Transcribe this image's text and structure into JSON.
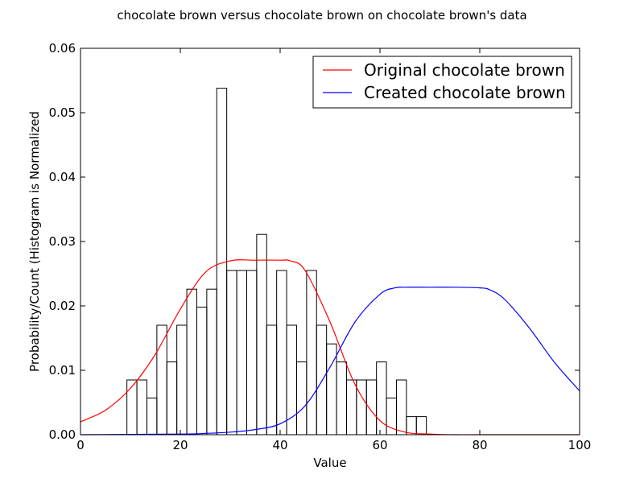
{
  "chart_data": {
    "type": "bar",
    "title": "chocolate brown versus chocolate brown on chocolate brown's data",
    "xlabel": "Value",
    "ylabel": "Probability/Count (Histogram is Normalized",
    "xlim": [
      0,
      100
    ],
    "ylim": [
      0,
      0.06
    ],
    "xticks": [
      0,
      20,
      40,
      60,
      80,
      100
    ],
    "xtick_labels": [
      "0",
      "20",
      "40",
      "60",
      "80",
      "100"
    ],
    "yticks": [
      0,
      0.01,
      0.02,
      0.03,
      0.04,
      0.05,
      0.06
    ],
    "ytick_labels": [
      "0.00",
      "0.01",
      "0.02",
      "0.03",
      "0.04",
      "0.05",
      "0.06"
    ],
    "grid": false,
    "legend_position": "top-right",
    "histogram": {
      "color": "#000000",
      "bins": [
        {
          "x0": 9.3,
          "x1": 11.3,
          "value": 0.0085
        },
        {
          "x0": 11.3,
          "x1": 13.3,
          "value": 0.0085
        },
        {
          "x0": 13.3,
          "x1": 15.3,
          "value": 0.0057
        },
        {
          "x0": 15.3,
          "x1": 17.3,
          "value": 0.017
        },
        {
          "x0": 17.3,
          "x1": 19.3,
          "value": 0.0113
        },
        {
          "x0": 19.3,
          "x1": 21.3,
          "value": 0.017
        },
        {
          "x0": 21.3,
          "x1": 23.3,
          "value": 0.0226
        },
        {
          "x0": 23.3,
          "x1": 25.3,
          "value": 0.0198
        },
        {
          "x0": 25.3,
          "x1": 27.3,
          "value": 0.0226
        },
        {
          "x0": 27.3,
          "x1": 29.3,
          "value": 0.0538
        },
        {
          "x0": 29.3,
          "x1": 31.3,
          "value": 0.0255
        },
        {
          "x0": 31.3,
          "x1": 33.3,
          "value": 0.0255
        },
        {
          "x0": 33.3,
          "x1": 35.3,
          "value": 0.0255
        },
        {
          "x0": 35.3,
          "x1": 37.3,
          "value": 0.0311
        },
        {
          "x0": 37.3,
          "x1": 39.3,
          "value": 0.017
        },
        {
          "x0": 39.3,
          "x1": 41.3,
          "value": 0.0255
        },
        {
          "x0": 41.3,
          "x1": 43.3,
          "value": 0.017
        },
        {
          "x0": 43.3,
          "x1": 45.3,
          "value": 0.0113
        },
        {
          "x0": 45.3,
          "x1": 47.3,
          "value": 0.0255
        },
        {
          "x0": 47.3,
          "x1": 49.3,
          "value": 0.017
        },
        {
          "x0": 49.3,
          "x1": 51.3,
          "value": 0.0141
        },
        {
          "x0": 51.3,
          "x1": 53.3,
          "value": 0.0113
        },
        {
          "x0": 53.3,
          "x1": 55.3,
          "value": 0.0085
        },
        {
          "x0": 55.3,
          "x1": 57.3,
          "value": 0.0085
        },
        {
          "x0": 57.3,
          "x1": 59.3,
          "value": 0.0085
        },
        {
          "x0": 59.3,
          "x1": 61.3,
          "value": 0.0113
        },
        {
          "x0": 61.3,
          "x1": 63.3,
          "value": 0.0057
        },
        {
          "x0": 63.3,
          "x1": 65.3,
          "value": 0.0085
        },
        {
          "x0": 65.3,
          "x1": 67.3,
          "value": 0.0028
        },
        {
          "x0": 67.3,
          "x1": 69.3,
          "value": 0.0028
        }
      ]
    },
    "series": [
      {
        "name": "Original chocolate brown",
        "color": "#ff0000",
        "x": [
          0,
          5,
          10,
          15,
          20,
          25,
          30,
          35,
          40,
          42,
          45,
          50,
          55,
          60,
          65,
          70,
          75,
          80,
          100
        ],
        "y": [
          0.002,
          0.0038,
          0.0072,
          0.0125,
          0.0195,
          0.0252,
          0.027,
          0.0271,
          0.0271,
          0.027,
          0.0255,
          0.0175,
          0.0078,
          0.0022,
          0.0004,
          0.0001,
          0.0,
          0.0,
          0.0
        ]
      },
      {
        "name": "Created chocolate brown",
        "color": "#0000ff",
        "x": [
          0,
          20,
          25,
          30,
          35,
          40,
          45,
          50,
          55,
          60,
          63,
          65,
          70,
          75,
          80,
          82,
          85,
          90,
          95,
          100
        ],
        "y": [
          0.0,
          0.0001,
          0.0002,
          0.0004,
          0.0008,
          0.0017,
          0.0045,
          0.0105,
          0.0175,
          0.0218,
          0.0228,
          0.0229,
          0.0229,
          0.0229,
          0.0228,
          0.0225,
          0.021,
          0.0165,
          0.0112,
          0.0068
        ]
      }
    ]
  }
}
